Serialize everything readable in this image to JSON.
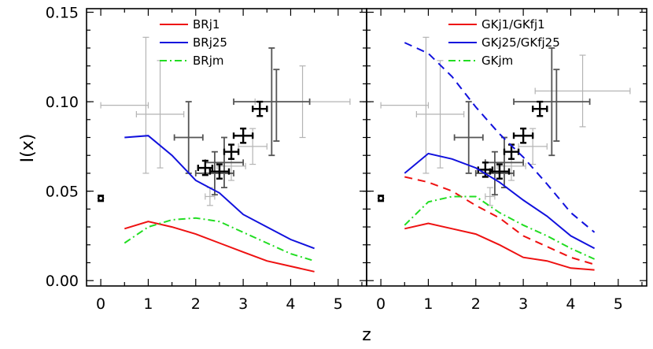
{
  "chart_data": [
    {
      "type": "line",
      "panel": "left",
      "xlabel": "z",
      "ylabel": "I(x)",
      "xlim": [
        -0.3,
        5.6
      ],
      "ylim": [
        -0.003,
        0.152
      ],
      "xticks": [
        0,
        1,
        2,
        3,
        4,
        5
      ],
      "yticks": [
        "0.00",
        "0.05",
        "0.10",
        "0.15"
      ],
      "legend_position": "top-center",
      "series": [
        {
          "name": "BRj1",
          "color": "#ee1111",
          "dash": "solid",
          "x": [
            0.5,
            1.0,
            1.5,
            2.0,
            2.5,
            3.0,
            3.5,
            4.0,
            4.5
          ],
          "y": [
            0.029,
            0.033,
            0.03,
            0.026,
            0.021,
            0.016,
            0.011,
            0.008,
            0.005
          ]
        },
        {
          "name": "BRj25",
          "color": "#1111dd",
          "dash": "solid",
          "x": [
            0.5,
            1.0,
            1.5,
            2.0,
            2.5,
            3.0,
            3.5,
            4.0,
            4.5
          ],
          "y": [
            0.08,
            0.081,
            0.07,
            0.056,
            0.049,
            0.037,
            0.03,
            0.023,
            0.018
          ]
        },
        {
          "name": "BRjm",
          "color": "#22dd22",
          "dash": "dashdot",
          "x": [
            0.5,
            1.0,
            1.5,
            2.0,
            2.5,
            3.0,
            3.5,
            4.0,
            4.5
          ],
          "y": [
            0.021,
            0.03,
            0.034,
            0.035,
            0.033,
            0.027,
            0.021,
            0.015,
            0.011
          ]
        }
      ],
      "observations": [
        {
          "shade": "light",
          "x": 0.5,
          "y": 0.098,
          "xerr": 0.5,
          "yerr": 0.0
        },
        {
          "shade": "light",
          "x": 0.95,
          "y": 0.098,
          "xerr": 0.0,
          "yerr": 0.038
        },
        {
          "shade": "light",
          "x": 1.25,
          "y": 0.093,
          "xerr": 0.5,
          "yerr": 0.03
        },
        {
          "shade": "light",
          "x": 2.3,
          "y": 0.047,
          "xerr": 0.1,
          "yerr": 0.005
        },
        {
          "shade": "light",
          "x": 2.75,
          "y": 0.064,
          "xerr": 0.3,
          "yerr": 0.008
        },
        {
          "shade": "light",
          "x": 3.2,
          "y": 0.075,
          "xerr": 0.3,
          "yerr": 0.01
        },
        {
          "shade": "light",
          "x": 4.25,
          "y": 0.1,
          "xerr": 1.0,
          "yerr": 0.02
        },
        {
          "shade": "dark",
          "x": 1.85,
          "y": 0.08,
          "xerr": 0.3,
          "yerr": 0.02
        },
        {
          "shade": "dark",
          "x": 2.4,
          "y": 0.06,
          "xerr": 0.4,
          "yerr": 0.012
        },
        {
          "shade": "dark",
          "x": 2.6,
          "y": 0.066,
          "xerr": 0.4,
          "yerr": 0.014
        },
        {
          "shade": "dark",
          "x": 3.6,
          "y": 0.1,
          "xerr": 0.8,
          "yerr": 0.03
        },
        {
          "shade": "dark",
          "x": 3.7,
          "y": 0.098,
          "xerr": 0.0,
          "yerr": 0.02
        },
        {
          "shade": "black",
          "x": 0.0,
          "y": 0.046,
          "xerr": 0.0,
          "yerr": 0.0015
        },
        {
          "shade": "black",
          "x": 2.2,
          "y": 0.063,
          "xerr": 0.15,
          "yerr": 0.004
        },
        {
          "shade": "black",
          "x": 2.5,
          "y": 0.061,
          "xerr": 0.2,
          "yerr": 0.004
        },
        {
          "shade": "black",
          "x": 2.75,
          "y": 0.072,
          "xerr": 0.15,
          "yerr": 0.004
        },
        {
          "shade": "black",
          "x": 3.0,
          "y": 0.081,
          "xerr": 0.2,
          "yerr": 0.004
        },
        {
          "shade": "black",
          "x": 3.35,
          "y": 0.096,
          "xerr": 0.15,
          "yerr": 0.004
        }
      ]
    },
    {
      "type": "line",
      "panel": "right",
      "xlabel": "z",
      "xlim": [
        -0.3,
        5.6
      ],
      "ylim": [
        -0.003,
        0.152
      ],
      "xticks": [
        0,
        1,
        2,
        3,
        4,
        5
      ],
      "legend_position": "top-right",
      "legend": [
        {
          "label": "GKj1/GKfj1",
          "color": "#ee1111",
          "dash": "solid"
        },
        {
          "label": "GKj25/GKfj25",
          "color": "#1111dd",
          "dash": "solid"
        },
        {
          "label": "GKjm",
          "color": "#22dd22",
          "dash": "dashdot"
        }
      ],
      "series": [
        {
          "color": "#ee1111",
          "dash": "solid",
          "x": [
            0.5,
            1.0,
            1.5,
            2.0,
            2.5,
            3.0,
            3.5,
            4.0,
            4.5
          ],
          "y": [
            0.029,
            0.032,
            0.029,
            0.026,
            0.02,
            0.013,
            0.011,
            0.007,
            0.006
          ]
        },
        {
          "color": "#1111dd",
          "dash": "solid",
          "x": [
            0.5,
            1.0,
            1.5,
            2.0,
            2.5,
            3.0,
            3.5,
            4.0,
            4.5
          ],
          "y": [
            0.06,
            0.071,
            0.068,
            0.063,
            0.055,
            0.045,
            0.036,
            0.025,
            0.018
          ]
        },
        {
          "color": "#ee1111",
          "dash": "dashed",
          "x": [
            0.5,
            1.0,
            1.5,
            2.0,
            2.5,
            3.0,
            3.5,
            4.0,
            4.5
          ],
          "y": [
            0.058,
            0.055,
            0.05,
            0.042,
            0.035,
            0.025,
            0.019,
            0.013,
            0.009
          ]
        },
        {
          "color": "#1111dd",
          "dash": "dashed",
          "x": [
            0.5,
            1.0,
            1.5,
            2.0,
            2.5,
            3.0,
            3.5,
            4.0,
            4.5
          ],
          "y": [
            0.133,
            0.127,
            0.114,
            0.097,
            0.082,
            0.069,
            0.054,
            0.038,
            0.027
          ]
        },
        {
          "color": "#22dd22",
          "dash": "dashdot",
          "x": [
            0.5,
            1.0,
            1.5,
            2.0,
            2.5,
            3.0,
            3.5,
            4.0,
            4.5
          ],
          "y": [
            0.031,
            0.044,
            0.047,
            0.047,
            0.038,
            0.031,
            0.025,
            0.018,
            0.012
          ]
        }
      ],
      "observations": [
        {
          "shade": "light",
          "x": 0.5,
          "y": 0.098,
          "xerr": 0.5,
          "yerr": 0.0
        },
        {
          "shade": "light",
          "x": 0.95,
          "y": 0.098,
          "xerr": 0.0,
          "yerr": 0.038
        },
        {
          "shade": "light",
          "x": 1.25,
          "y": 0.093,
          "xerr": 0.5,
          "yerr": 0.03
        },
        {
          "shade": "light",
          "x": 2.3,
          "y": 0.047,
          "xerr": 0.1,
          "yerr": 0.005
        },
        {
          "shade": "light",
          "x": 2.75,
          "y": 0.064,
          "xerr": 0.3,
          "yerr": 0.008
        },
        {
          "shade": "light",
          "x": 3.2,
          "y": 0.075,
          "xerr": 0.3,
          "yerr": 0.01
        },
        {
          "shade": "light",
          "x": 4.25,
          "y": 0.106,
          "xerr": 1.0,
          "yerr": 0.02
        },
        {
          "shade": "dark",
          "x": 1.85,
          "y": 0.08,
          "xerr": 0.3,
          "yerr": 0.02
        },
        {
          "shade": "dark",
          "x": 2.4,
          "y": 0.06,
          "xerr": 0.4,
          "yerr": 0.012
        },
        {
          "shade": "dark",
          "x": 2.6,
          "y": 0.066,
          "xerr": 0.4,
          "yerr": 0.014
        },
        {
          "shade": "dark",
          "x": 3.6,
          "y": 0.1,
          "xerr": 0.8,
          "yerr": 0.03
        },
        {
          "shade": "dark",
          "x": 3.7,
          "y": 0.098,
          "xerr": 0.0,
          "yerr": 0.02
        },
        {
          "shade": "black",
          "x": 0.0,
          "y": 0.046,
          "xerr": 0.0,
          "yerr": 0.0015
        },
        {
          "shade": "black",
          "x": 2.2,
          "y": 0.062,
          "xerr": 0.15,
          "yerr": 0.004
        },
        {
          "shade": "black",
          "x": 2.5,
          "y": 0.061,
          "xerr": 0.2,
          "yerr": 0.004
        },
        {
          "shade": "black",
          "x": 2.75,
          "y": 0.072,
          "xerr": 0.15,
          "yerr": 0.004
        },
        {
          "shade": "black",
          "x": 3.0,
          "y": 0.081,
          "xerr": 0.2,
          "yerr": 0.004
        },
        {
          "shade": "black",
          "x": 3.35,
          "y": 0.096,
          "xerr": 0.15,
          "yerr": 0.004
        }
      ]
    }
  ],
  "colors": {
    "light": "#b4b4b4",
    "dark": "#555555",
    "black": "#000000"
  }
}
